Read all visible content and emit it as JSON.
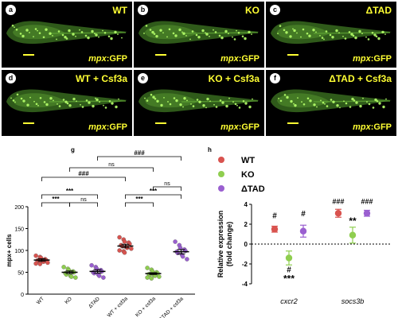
{
  "panels": [
    {
      "label": "a",
      "title": "WT",
      "gene": "mpx",
      "suffix": ":GFP"
    },
    {
      "label": "b",
      "title": "KO",
      "gene": "mpx",
      "suffix": ":GFP"
    },
    {
      "label": "c",
      "title": "ΔTAD",
      "gene": "mpx",
      "suffix": ":GFP"
    },
    {
      "label": "d",
      "title": "WT + Csf3a",
      "gene": "mpx",
      "suffix": ":GFP"
    },
    {
      "label": "e",
      "title": "KO + Csf3a",
      "gene": "mpx",
      "suffix": ":GFP"
    },
    {
      "label": "f",
      "title": "ΔTAD + Csf3a",
      "gene": "mpx",
      "suffix": ":GFP"
    }
  ],
  "panel_g": {
    "label": "g",
    "ylabel": "mpx+ cells",
    "brackets": [
      {
        "text": "###"
      },
      {
        "text": "ns"
      },
      {
        "text": "###"
      },
      {
        "text": "ns"
      },
      {
        "text": "***"
      },
      {
        "text": "***"
      },
      {
        "text": "ns"
      },
      {
        "text": "***"
      },
      {
        "text": "***"
      }
    ]
  },
  "panel_h": {
    "label": "h",
    "ylabel_line1": "Relative expression",
    "ylabel_line2": "(fold change)",
    "legend": [
      {
        "name": "WT",
        "color": "#d9534f"
      },
      {
        "name": "KO",
        "color": "#8fce4f"
      },
      {
        "name": "ΔTAD",
        "color": "#9a5fd0"
      }
    ],
    "annotations": {
      "wt_cxcr2": "#",
      "ko_cxcr2_top": "#",
      "ko_cxcr2_bottom": "***",
      "tad_cxcr2": "#",
      "wt_socs3b": "###",
      "ko_socs3b": "**",
      "tad_socs3b": "###"
    }
  },
  "chart_data": [
    {
      "type": "scatter",
      "categories": [
        "WT",
        "KO",
        "ΔTAD",
        "WT + csf3a",
        "KO + csf3a",
        "ΔTAD + csf3a"
      ],
      "ylabel": "mpx+ cells",
      "ylim": [
        0,
        200
      ],
      "yticks": [
        0,
        50,
        100,
        150,
        200
      ],
      "means": [
        78,
        50,
        52,
        110,
        47,
        97
      ],
      "sem": [
        3,
        3,
        4,
        4,
        2,
        5
      ],
      "colors": [
        "#d9534f",
        "#8fce4f",
        "#9a5fd0",
        "#d9534f",
        "#8fce4f",
        "#9a5fd0"
      ],
      "points": [
        [
          88,
          85,
          83,
          80,
          78,
          77,
          76,
          75,
          74,
          72,
          70,
          69
        ],
        [
          62,
          58,
          55,
          52,
          50,
          48,
          45,
          42,
          40,
          38
        ],
        [
          66,
          62,
          58,
          55,
          52,
          50,
          48,
          45,
          42,
          38
        ],
        [
          130,
          125,
          120,
          118,
          115,
          112,
          110,
          108,
          106,
          104,
          100,
          98,
          95
        ],
        [
          60,
          56,
          52,
          50,
          48,
          46,
          45,
          44,
          42,
          40,
          38,
          36
        ],
        [
          120,
          112,
          106,
          102,
          99,
          97,
          94,
          90,
          86,
          80
        ]
      ]
    },
    {
      "type": "scatter",
      "categories": [
        "cxcr2",
        "socs3b"
      ],
      "ylabel": "Relative expression (fold change)",
      "ylim": [
        -4,
        4
      ],
      "yticks": [
        -4,
        -2,
        0,
        2,
        4
      ],
      "series": [
        {
          "name": "WT",
          "values": [
            1.5,
            3.1
          ],
          "err": [
            0.3,
            0.4
          ]
        },
        {
          "name": "KO",
          "values": [
            -1.4,
            0.9
          ],
          "err": [
            0.7,
            0.8
          ]
        },
        {
          "name": "ΔTAD",
          "values": [
            1.3,
            3.1
          ],
          "err": [
            0.6,
            0.3
          ]
        }
      ]
    }
  ]
}
